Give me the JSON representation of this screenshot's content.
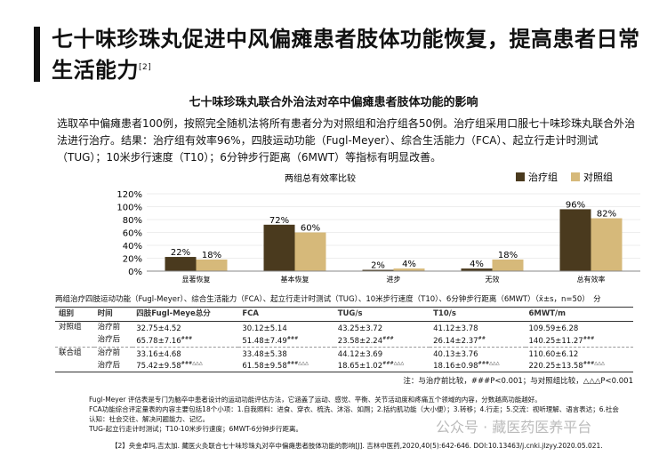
{
  "title": "七十味珍珠丸促进中风偏瘫患者肢体功能恢复，提高患者日常生活能力",
  "title_sup": "[2]",
  "subtitle": "七十味珍珠丸联合外治法对卒中偏瘫患者肢体功能的影响",
  "paragraph": "选取卒中偏瘫患者100例，按照完全随机法将所有患者分为对照组和治疗组各50例。治疗组采用口服七十味珍珠丸联合外治法进行治疗。结果：治疗组有效率96%，四肢运动功能（Fugl-Meyer）、综合生活能力（FCA）、起立行走计时测试（TUG）；10米步行速度（T10）；6分钟步行距离（6MWT）等指标有明显改善。",
  "chart_data": {
    "type": "bar",
    "title": "两组总有效率比较",
    "categories": [
      "显著恢复",
      "基本恢复",
      "进步",
      "无效",
      "总有效率"
    ],
    "series": [
      {
        "name": "治疗组",
        "values": [
          22,
          72,
          2,
          4,
          96
        ],
        "color": "#4a3a1e"
      },
      {
        "name": "对照组",
        "values": [
          18,
          60,
          4,
          18,
          82
        ],
        "color": "#d6b97a"
      }
    ],
    "ylim": [
      0,
      120
    ],
    "yticks": [
      "0%",
      "20%",
      "40%",
      "60%",
      "80%",
      "100%",
      "120%"
    ],
    "legend": "top-right"
  },
  "table": {
    "caption": "两组治疗四肢运动功能（Fugl-Meyer）、综合生活能力（FCA）、起立行走计时测试（TUG）、10米步行速度（T10）、6分钟步行距离（6MWT）（x̄±s，n=50）　分",
    "headers": [
      "组别",
      "时间",
      "四肢Fugl-Meye总分",
      "FCA",
      "TUG/s",
      "T10/s",
      "6MWT/m"
    ],
    "rows": [
      {
        "group": "对照组",
        "time": "治疗前",
        "cells": [
          "32.75±4.52",
          "30.12±5.14",
          "43.25±3.72",
          "41.12±3.78",
          "109.59±6.28"
        ],
        "marks": [
          "",
          "",
          "",
          "",
          ""
        ]
      },
      {
        "group": "",
        "time": "治疗后",
        "cells": [
          "65.78±7.16",
          "51.48±7.49",
          "23.58±2.24",
          "26.14±2.37",
          "140.25±11.27"
        ],
        "marks": [
          "###",
          "###",
          "###",
          "##",
          "###"
        ]
      },
      {
        "group": "联合组",
        "time": "治疗前",
        "cells": [
          "33.16±4.68",
          "33.48±5.38",
          "44.12±3.69",
          "40.13±3.76",
          "110.60±6.12"
        ],
        "marks": [
          "",
          "",
          "",
          "",
          ""
        ]
      },
      {
        "group": "",
        "time": "治疗后",
        "cells": [
          "75.42±9.58",
          "61.58±9.58",
          "18.65±1.02",
          "18.16±0.98",
          "220.25±13.58"
        ],
        "marks": [
          "###△△△",
          "###△△△",
          "###△△△",
          "###△△△",
          "###△△△"
        ]
      }
    ],
    "note": "注：与治疗前比较，###P<0.001；与对照组比较，△△△P<0.001"
  },
  "footnotes": [
    "Fugl-Meyer 评估表是专门为脑卒中患者设计的运动功能评估方法，它涵盖了运动、感觉、平衡、关节活动度和疼痛五个领域的内容，分数越高功能越好。",
    "FCA功能综合评定量表的内容主要包括18个小项：1.自我照料：进食、穿衣、梳洗、沐浴、如厕；2.括约肌功能（大小便）；3.转移；4.行走；5.交流：视听理解、语言表达；6.社会认知：社会交往、解决问题能力、记忆。",
    "TUG-起立行走计时测试；T10-10米步行速度；6MWT-6分钟步行距离。"
  ],
  "reference": "【2】央金卓玛,吉太加. 藏医火灸联合七十味珍珠丸对卒中偏瘫患者肢体功能的影响[J]. 吉林中医药,2020,40(5):642-646. DOI:10.13463/j.cnki.jlzyy.2020.05.021.",
  "watermark": "公众号 · 藏医药医养平台"
}
